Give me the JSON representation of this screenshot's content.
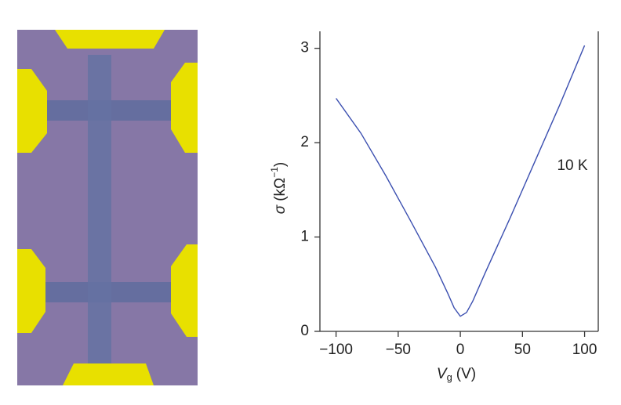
{
  "chart_data": {
    "type": "line",
    "x_label": [
      "V",
      "g",
      "(V)"
    ],
    "y_label": [
      "σ",
      "(kΩ",
      "−1",
      ")"
    ],
    "annotation": "10 K",
    "x": [
      -100,
      -80,
      -60,
      -40,
      -20,
      -10,
      -5,
      0,
      5,
      10,
      20,
      40,
      60,
      80,
      100
    ],
    "series": [
      {
        "color": "#3b4fb0",
        "values": [
          2.47,
          2.1,
          1.65,
          1.17,
          0.68,
          0.4,
          0.25,
          0.16,
          0.2,
          0.32,
          0.62,
          1.2,
          1.8,
          2.4,
          3.03
        ]
      }
    ],
    "xlim": [
      -113,
      111
    ],
    "xticks": [
      {
        "value": -100,
        "label": "−100"
      },
      {
        "value": -50,
        "label": "−50"
      },
      0,
      50,
      100
    ],
    "ylim": [
      0,
      3.18
    ],
    "yticks": [
      0,
      1,
      2,
      3
    ]
  }
}
